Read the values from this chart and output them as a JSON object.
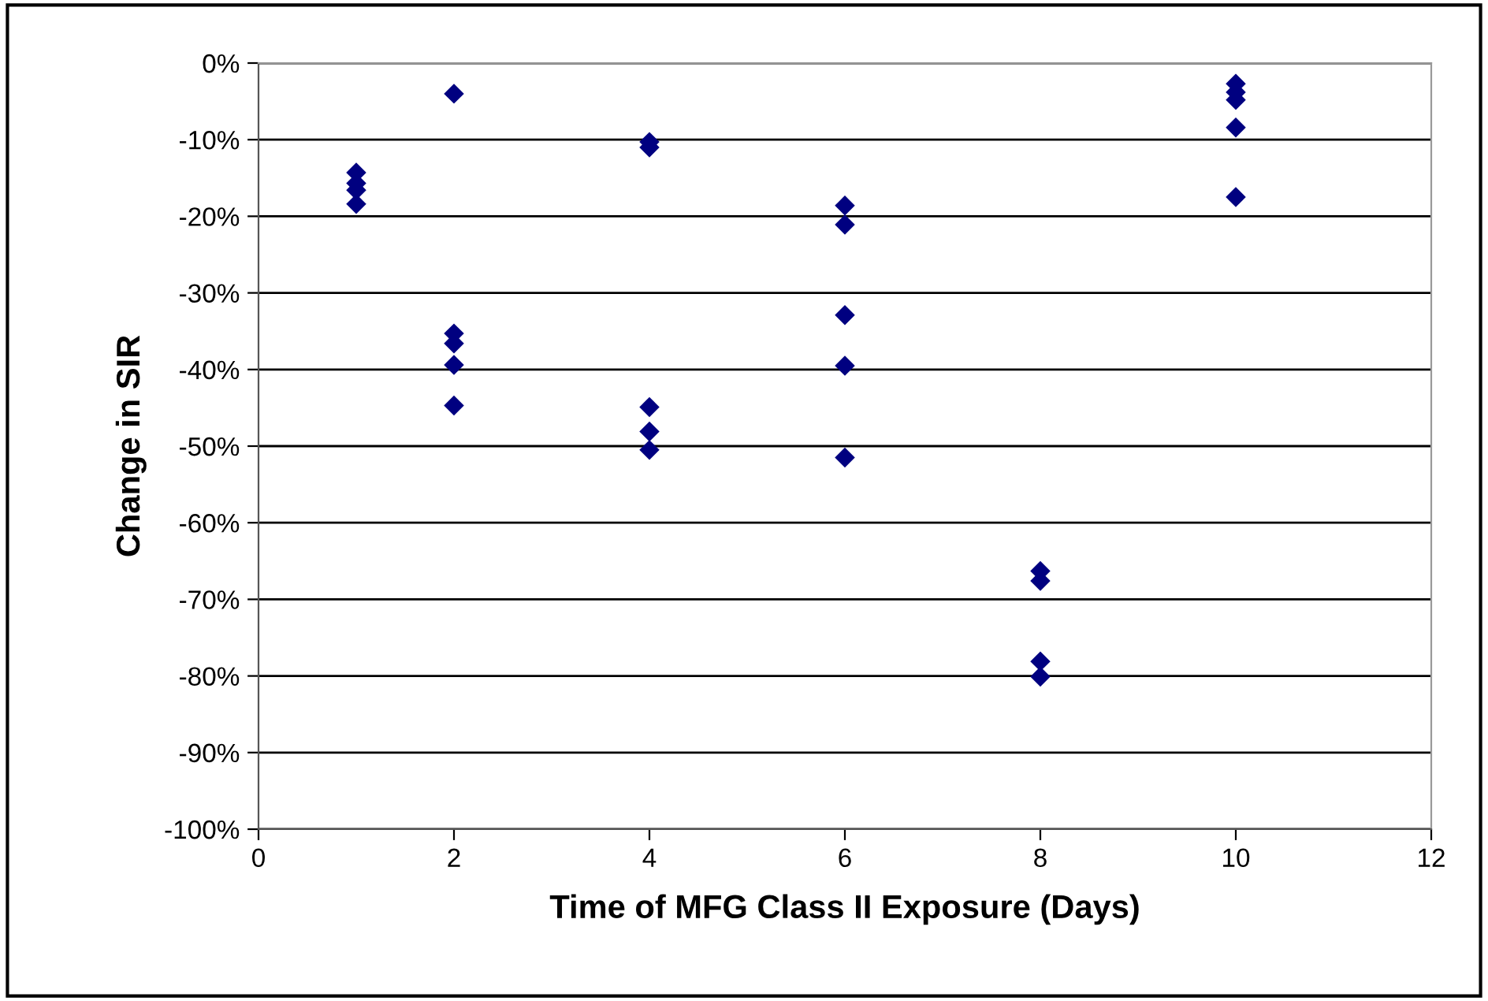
{
  "chart_data": {
    "type": "scatter",
    "xlabel": "Time of MFG Class II Exposure (Days)",
    "ylabel": "Change in SIR",
    "series": [
      {
        "color": "#000080",
        "x": [
          1,
          1,
          1,
          1,
          2,
          2,
          2,
          2,
          2,
          4,
          4,
          4,
          4,
          4,
          6,
          6,
          6,
          6,
          6,
          8,
          8,
          8,
          8,
          10,
          10,
          10,
          10,
          10
        ],
        "values": [
          -14.3,
          -15.7,
          -16.6,
          -18.4,
          -4.0,
          -35.3,
          -36.6,
          -39.4,
          -44.7,
          -10.3,
          -11.0,
          -44.9,
          -48.1,
          -50.5,
          -18.6,
          -21.1,
          -32.9,
          -39.5,
          -51.5,
          -66.3,
          -67.6,
          -78.1,
          -80.1,
          -2.7,
          -3.8,
          -4.8,
          -8.4,
          -17.5
        ]
      }
    ],
    "marker": "diamond",
    "grid": "y",
    "xlim": [
      0,
      12
    ],
    "xticks": [
      0,
      2,
      4,
      6,
      8,
      10,
      12
    ],
    "ylim": [
      -100,
      0
    ],
    "yticks": [
      {
        "value": 0,
        "label": "0%"
      },
      {
        "value": -10,
        "label": "-10%"
      },
      {
        "value": -20,
        "label": "-20%"
      },
      {
        "value": -30,
        "label": "-30%"
      },
      {
        "value": -40,
        "label": "-40%"
      },
      {
        "value": -50,
        "label": "-50%"
      },
      {
        "value": -60,
        "label": "-60%"
      },
      {
        "value": -70,
        "label": "-70%"
      },
      {
        "value": -80,
        "label": "-80%"
      },
      {
        "value": -90,
        "label": "-90%"
      },
      {
        "value": -100,
        "label": "-100%"
      }
    ]
  }
}
